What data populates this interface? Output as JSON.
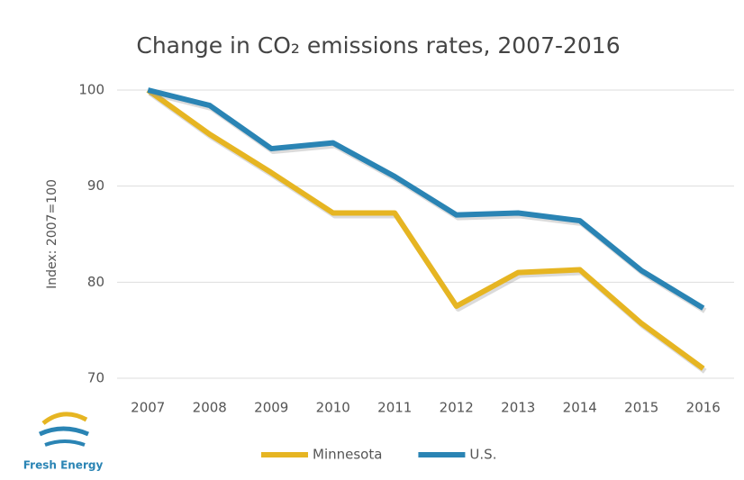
{
  "chart_data": {
    "type": "line",
    "title": "Change in CO₂ emissions rates, 2007-2016",
    "y_label": "Index: 2007=100",
    "categories": [
      "2007",
      "2008",
      "2009",
      "2010",
      "2011",
      "2012",
      "2013",
      "2014",
      "2015",
      "2016"
    ],
    "series": [
      {
        "name": "Minnesota",
        "color": "#e6b522",
        "values": [
          100,
          95.4,
          91.4,
          87.2,
          87.2,
          77.5,
          81,
          81.3,
          75.7,
          71
        ]
      },
      {
        "name": "U.S.",
        "color": "#2a84b4",
        "values": [
          100,
          98.4,
          93.9,
          94.5,
          91,
          87,
          87.2,
          86.4,
          81.2,
          77.3
        ]
      }
    ],
    "ylim": [
      70,
      100
    ],
    "yticks": [
      70,
      80,
      90,
      100
    ],
    "grid": true,
    "legend": "bottom",
    "logo_text": "Fresh Energy"
  }
}
